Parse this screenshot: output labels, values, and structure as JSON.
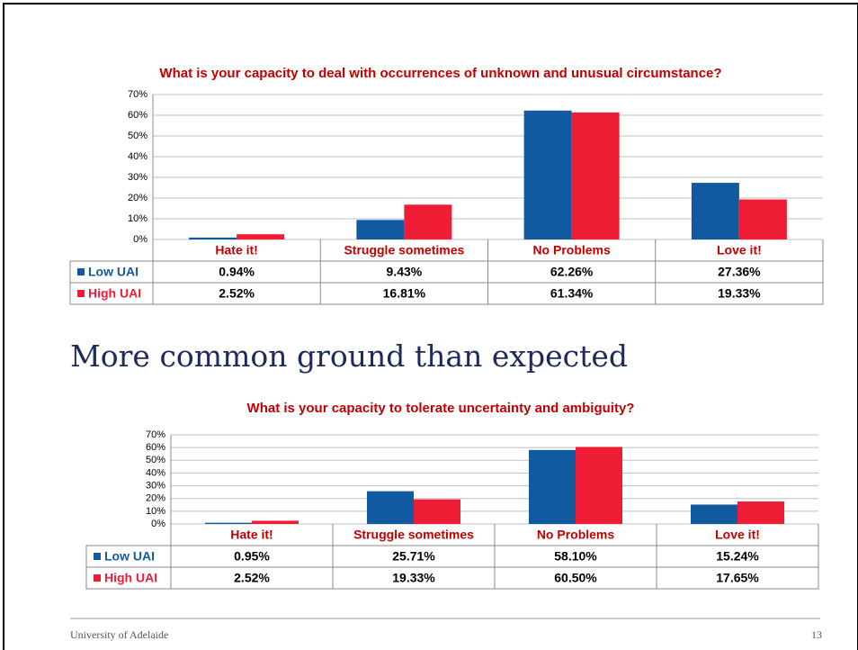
{
  "chart_data": [
    {
      "type": "bar",
      "title": "What is your capacity to deal with occurrences of unknown and unusual circumstance?",
      "categories": [
        "Hate it!",
        "Struggle sometimes",
        "No Problems",
        "Love it!"
      ],
      "series": [
        {
          "name": "Low UAI",
          "color": "#125aa0",
          "values": [
            0.94,
            9.43,
            62.26,
            27.36
          ],
          "value_labels": [
            "0.94%",
            "9.43%",
            "62.26%",
            "27.36%"
          ]
        },
        {
          "name": "High UAI",
          "color": "#ee1c35",
          "values": [
            2.52,
            16.81,
            61.34,
            19.33
          ],
          "value_labels": [
            "2.52%",
            "16.81%",
            "61.34%",
            "19.33%"
          ]
        }
      ],
      "ylim": [
        0,
        70
      ],
      "yticks": [
        {
          "value": 0,
          "label": "0%"
        },
        {
          "value": 10,
          "label": "10%"
        },
        {
          "value": 20,
          "label": "20%"
        },
        {
          "value": 30,
          "label": "30%"
        },
        {
          "value": 40,
          "label": "40%"
        },
        {
          "value": 50,
          "label": "50%"
        },
        {
          "value": 60,
          "label": "60%"
        },
        {
          "value": 70,
          "label": "70%"
        }
      ],
      "grid": true
    },
    {
      "type": "bar",
      "title": "What is your capacity to tolerate uncertainty and ambiguity?",
      "categories": [
        "Hate it!",
        "Struggle sometimes",
        "No Problems",
        "Love it!"
      ],
      "series": [
        {
          "name": "Low UAI",
          "color": "#125aa0",
          "values": [
            0.95,
            25.71,
            58.1,
            15.24
          ],
          "value_labels": [
            "0.95%",
            "25.71%",
            "58.10%",
            "15.24%"
          ]
        },
        {
          "name": "High UAI",
          "color": "#ee1c35",
          "values": [
            2.52,
            19.33,
            60.5,
            17.65
          ],
          "value_labels": [
            "2.52%",
            "19.33%",
            "60.50%",
            "17.65%"
          ]
        }
      ],
      "ylim": [
        0,
        70
      ],
      "yticks": [
        {
          "value": 0,
          "label": "0%"
        },
        {
          "value": 10,
          "label": "10%"
        },
        {
          "value": 20,
          "label": "20%"
        },
        {
          "value": 30,
          "label": "30%"
        },
        {
          "value": 40,
          "label": "40%"
        },
        {
          "value": 50,
          "label": "50%"
        },
        {
          "value": 60,
          "label": "60%"
        },
        {
          "value": 70,
          "label": "70%"
        }
      ],
      "grid": true
    }
  ],
  "slide_title": "More common ground than expected",
  "footer": {
    "source": "University of Adelaide",
    "page": "13"
  }
}
